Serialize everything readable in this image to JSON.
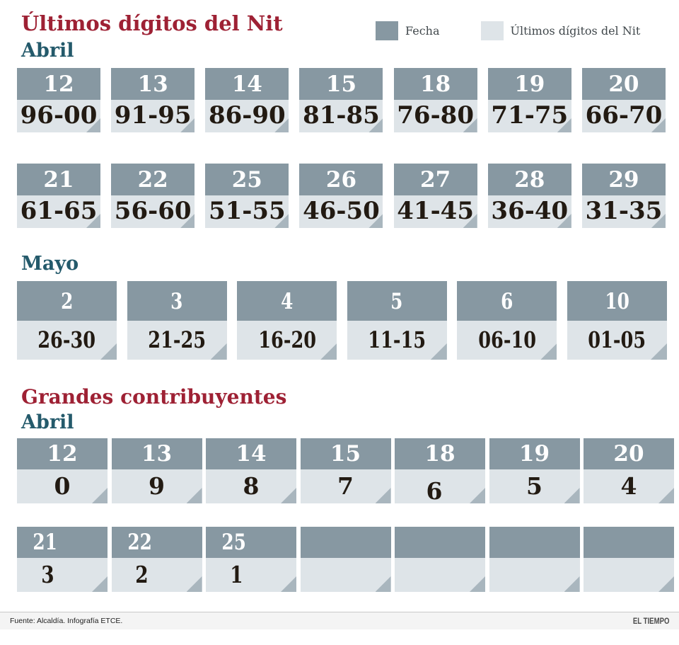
{
  "title": "Últimos dígitos del Nit",
  "colors": {
    "fecha_bg": "#8798a2",
    "nit_bg": "#dee4e8",
    "fold": "#a9b6be",
    "title": "#9e2134",
    "month": "#245a6b",
    "digits_text": "#221a12",
    "footer_bg": "#f4f4f4"
  },
  "chart_data": {
    "type": "table",
    "title": "Últimos dígitos del Nit",
    "legend": [
      "Fecha",
      "Últimos dígitos del Nit"
    ],
    "columns": [
      "Fecha",
      "Últimos dígitos del Nit"
    ],
    "groups": [
      {
        "month": "Abril",
        "rows": [
          [
            {
              "fecha": "12",
              "nit": "96-00"
            },
            {
              "fecha": "13",
              "nit": "91-95"
            },
            {
              "fecha": "14",
              "nit": "86-90"
            },
            {
              "fecha": "15",
              "nit": "81-85"
            },
            {
              "fecha": "18",
              "nit": "76-80"
            },
            {
              "fecha": "19",
              "nit": "71-75"
            },
            {
              "fecha": "20",
              "nit": "66-70"
            }
          ],
          [
            {
              "fecha": "21",
              "nit": "61-65"
            },
            {
              "fecha": "22",
              "nit": "56-60"
            },
            {
              "fecha": "25",
              "nit": "51-55"
            },
            {
              "fecha": "26",
              "nit": "46-50"
            },
            {
              "fecha": "27",
              "nit": "41-45"
            },
            {
              "fecha": "28",
              "nit": "36-40"
            },
            {
              "fecha": "29",
              "nit": "31-35"
            }
          ]
        ]
      },
      {
        "month": "Mayo",
        "rows": [
          [
            {
              "fecha": "2",
              "nit": "26-30"
            },
            {
              "fecha": "3",
              "nit": "21-25"
            },
            {
              "fecha": "4",
              "nit": "16-20"
            },
            {
              "fecha": "5",
              "nit": "11-15"
            },
            {
              "fecha": "6",
              "nit": "06-10"
            },
            {
              "fecha": "10",
              "nit": "01-05"
            }
          ]
        ]
      },
      {
        "heading": "Grandes contribuyentes",
        "month": "Abril",
        "rows": [
          [
            {
              "fecha": "12",
              "nit": "0"
            },
            {
              "fecha": "13",
              "nit": "9"
            },
            {
              "fecha": "14",
              "nit": "8"
            },
            {
              "fecha": "15",
              "nit": "7"
            },
            {
              "fecha": "18",
              "nit": "6"
            },
            {
              "fecha": "19",
              "nit": "5"
            },
            {
              "fecha": "20",
              "nit": "4"
            }
          ],
          [
            {
              "fecha": "21",
              "nit": "3"
            },
            {
              "fecha": "22",
              "nit": "2"
            },
            {
              "fecha": "25",
              "nit": "1"
            },
            {
              "fecha": "",
              "nit": ""
            },
            {
              "fecha": "",
              "nit": ""
            },
            {
              "fecha": "",
              "nit": ""
            },
            {
              "fecha": "",
              "nit": ""
            }
          ]
        ]
      }
    ]
  },
  "footer": {
    "source": "Fuente: Alcaldía. Infografía ETCE.",
    "brand": "EL TIEMPO"
  }
}
